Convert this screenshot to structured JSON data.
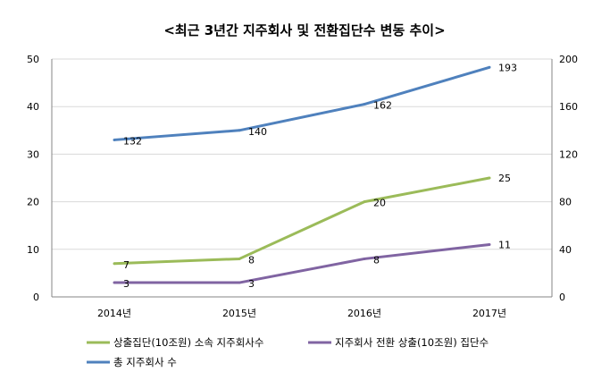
{
  "chart_data": {
    "type": "line",
    "title": "<최근 3년간 지주회사 및 전환집단수 변동 추이>",
    "categories": [
      "2014년",
      "2015년",
      "2016년",
      "2017년"
    ],
    "y_left": {
      "range": [
        0,
        50
      ],
      "ticks": [
        0,
        10,
        20,
        30,
        40,
        50
      ]
    },
    "y_right": {
      "range": [
        0,
        200
      ],
      "ticks": [
        0,
        40,
        80,
        120,
        160,
        200
      ]
    },
    "grid": true,
    "legend_position": "bottom",
    "series": [
      {
        "name": "상출집단(10조원) 소속 지주회사수",
        "axis": "left",
        "color": "#9BBB59",
        "values": [
          7,
          8,
          20,
          25
        ]
      },
      {
        "name": "지주회사 전환 상출(10조원) 집단수",
        "axis": "left",
        "color": "#8064A2",
        "values": [
          3,
          3,
          8,
          11
        ]
      },
      {
        "name": "총 지주회사 수",
        "axis": "right",
        "color": "#4F81BD",
        "values": [
          132,
          140,
          162,
          193
        ]
      }
    ]
  }
}
